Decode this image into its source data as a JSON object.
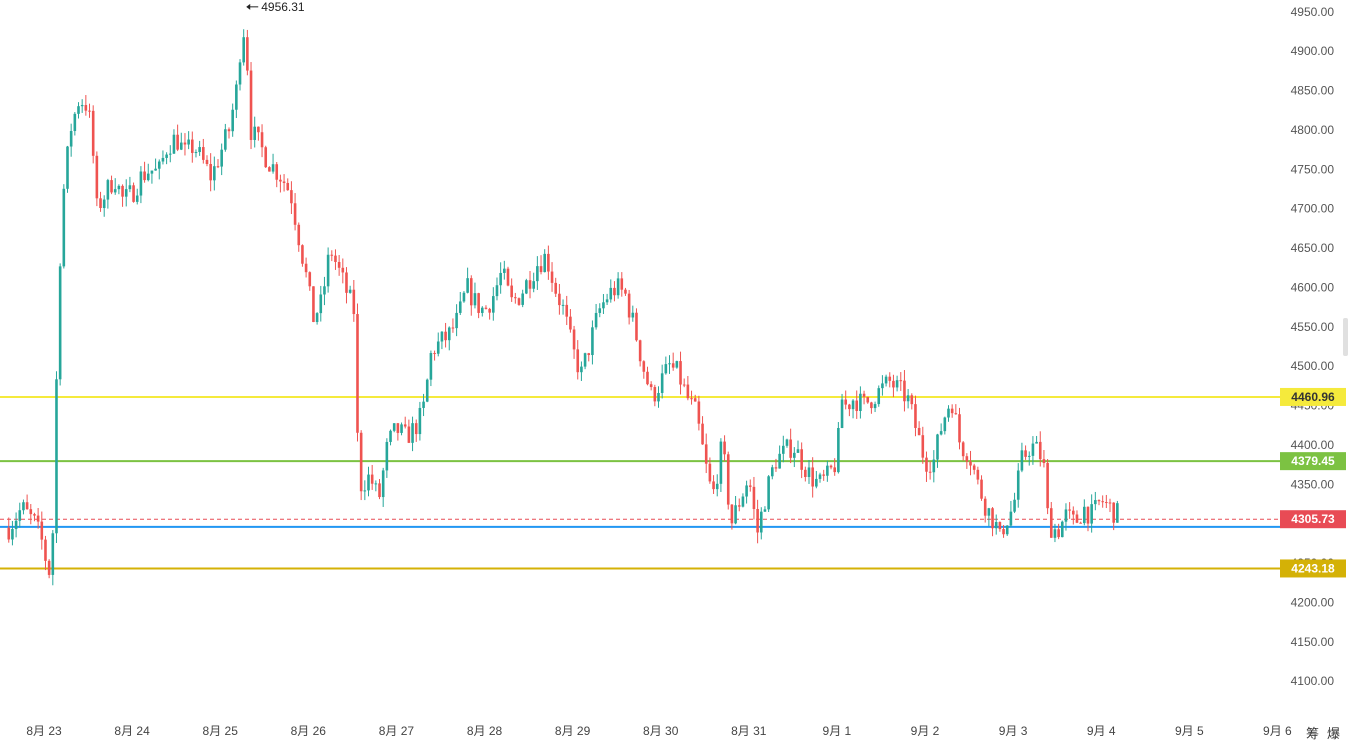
{
  "chart_data": {
    "type": "candlestick",
    "y_axis": {
      "range": [
        4066,
        4965
      ],
      "ticks": [
        4100,
        4150,
        4200,
        4250,
        4300,
        4350,
        4400,
        4450,
        4500,
        4550,
        4600,
        4650,
        4700,
        4750,
        4800,
        4850,
        4900,
        4950
      ],
      "tick_labels": [
        "4100.00",
        "4150.00",
        "4200.00",
        "4250.00",
        "4300.00",
        "4350.00",
        "4400.00",
        "4450.00",
        "4500.00",
        "4550.00",
        "4600.00",
        "4650.00",
        "4700.00",
        "4750.00",
        "4800.00",
        "4850.00",
        "4900.00",
        "4950.00"
      ],
      "position": "right"
    },
    "x_axis": {
      "labels": [
        "8月 23",
        "8月 24",
        "8月 25",
        "8月 26",
        "8月 27",
        "8月 28",
        "8月 29",
        "8月 30",
        "8月 31",
        "9月 1",
        "9月 2",
        "9月 3",
        "9月 4",
        "9月 5",
        "9月 6"
      ]
    },
    "x_range_days": [
      -0.4,
      14.3
    ],
    "colors": {
      "up": "#26a69a",
      "down": "#ef5350"
    },
    "price_path": [
      [
        -0.4,
        4295
      ],
      [
        -0.25,
        4320
      ],
      [
        -0.1,
        4300
      ],
      [
        0.0,
        4270
      ],
      [
        0.05,
        4230
      ],
      [
        0.1,
        4290
      ],
      [
        0.15,
        4520
      ],
      [
        0.2,
        4700
      ],
      [
        0.3,
        4800
      ],
      [
        0.4,
        4840
      ],
      [
        0.5,
        4830
      ],
      [
        0.55,
        4780
      ],
      [
        0.6,
        4700
      ],
      [
        0.7,
        4720
      ],
      [
        0.8,
        4740
      ],
      [
        0.9,
        4710
      ],
      [
        1.0,
        4720
      ],
      [
        1.1,
        4740
      ],
      [
        1.2,
        4750
      ],
      [
        1.3,
        4745
      ],
      [
        1.4,
        4780
      ],
      [
        1.5,
        4790
      ],
      [
        1.6,
        4770
      ],
      [
        1.7,
        4780
      ],
      [
        1.8,
        4760
      ],
      [
        1.9,
        4740
      ],
      [
        2.0,
        4770
      ],
      [
        2.1,
        4800
      ],
      [
        2.2,
        4860
      ],
      [
        2.25,
        4940
      ],
      [
        2.3,
        4900
      ],
      [
        2.35,
        4800
      ],
      [
        2.45,
        4780
      ],
      [
        2.55,
        4760
      ],
      [
        2.7,
        4740
      ],
      [
        2.8,
        4720
      ],
      [
        2.9,
        4660
      ],
      [
        3.0,
        4600
      ],
      [
        3.05,
        4560
      ],
      [
        3.15,
        4580
      ],
      [
        3.25,
        4650
      ],
      [
        3.35,
        4620
      ],
      [
        3.45,
        4590
      ],
      [
        3.52,
        4570
      ],
      [
        3.55,
        4420
      ],
      [
        3.6,
        4350
      ],
      [
        3.7,
        4360
      ],
      [
        3.8,
        4330
      ],
      [
        3.9,
        4400
      ],
      [
        4.0,
        4420
      ],
      [
        4.1,
        4410
      ],
      [
        4.2,
        4420
      ],
      [
        4.3,
        4440
      ],
      [
        4.4,
        4520
      ],
      [
        4.5,
        4530
      ],
      [
        4.6,
        4540
      ],
      [
        4.7,
        4560
      ],
      [
        4.8,
        4600
      ],
      [
        4.9,
        4580
      ],
      [
        5.0,
        4570
      ],
      [
        5.1,
        4590
      ],
      [
        5.2,
        4620
      ],
      [
        5.3,
        4580
      ],
      [
        5.4,
        4590
      ],
      [
        5.5,
        4610
      ],
      [
        5.6,
        4630
      ],
      [
        5.7,
        4640
      ],
      [
        5.8,
        4600
      ],
      [
        5.9,
        4570
      ],
      [
        6.0,
        4520
      ],
      [
        6.1,
        4490
      ],
      [
        6.2,
        4530
      ],
      [
        6.3,
        4570
      ],
      [
        6.4,
        4590
      ],
      [
        6.5,
        4600
      ],
      [
        6.6,
        4590
      ],
      [
        6.7,
        4550
      ],
      [
        6.8,
        4500
      ],
      [
        6.9,
        4460
      ],
      [
        7.0,
        4480
      ],
      [
        7.1,
        4500
      ],
      [
        7.2,
        4490
      ],
      [
        7.3,
        4460
      ],
      [
        7.4,
        4440
      ],
      [
        7.5,
        4380
      ],
      [
        7.55,
        4350
      ],
      [
        7.6,
        4340
      ],
      [
        7.7,
        4400
      ],
      [
        7.8,
        4300
      ],
      [
        7.9,
        4330
      ],
      [
        8.0,
        4360
      ],
      [
        8.05,
        4320
      ],
      [
        8.1,
        4290
      ],
      [
        8.2,
        4340
      ],
      [
        8.3,
        4380
      ],
      [
        8.4,
        4390
      ],
      [
        8.5,
        4400
      ],
      [
        8.6,
        4380
      ],
      [
        8.7,
        4360
      ],
      [
        8.8,
        4350
      ],
      [
        8.9,
        4360
      ],
      [
        9.0,
        4380
      ],
      [
        9.05,
        4460
      ],
      [
        9.1,
        4450
      ],
      [
        9.2,
        4460
      ],
      [
        9.3,
        4450
      ],
      [
        9.4,
        4460
      ],
      [
        9.5,
        4470
      ],
      [
        9.6,
        4480
      ],
      [
        9.7,
        4470
      ],
      [
        9.8,
        4460
      ],
      [
        9.9,
        4420
      ],
      [
        10.0,
        4380
      ],
      [
        10.1,
        4380
      ],
      [
        10.2,
        4430
      ],
      [
        10.3,
        4460
      ],
      [
        10.4,
        4400
      ],
      [
        10.5,
        4390
      ],
      [
        10.6,
        4350
      ],
      [
        10.7,
        4320
      ],
      [
        10.8,
        4300
      ],
      [
        10.85,
        4280
      ],
      [
        10.9,
        4300
      ],
      [
        11.0,
        4320
      ],
      [
        11.1,
        4380
      ],
      [
        11.2,
        4400
      ],
      [
        11.3,
        4390
      ],
      [
        11.35,
        4370
      ],
      [
        11.4,
        4300
      ],
      [
        11.5,
        4290
      ],
      [
        11.6,
        4310
      ],
      [
        11.7,
        4300
      ],
      [
        11.8,
        4320
      ],
      [
        11.9,
        4310
      ],
      [
        12.0,
        4330
      ],
      [
        12.1,
        4320
      ],
      [
        12.2,
        4310
      ]
    ],
    "hlines": [
      {
        "value": 4460.96,
        "label": "4460.96",
        "color": "#f5ea3c"
      },
      {
        "value": 4379.45,
        "label": "4379.45",
        "color": "#7cc242"
      },
      {
        "value": 4305.73,
        "label": "4305.73",
        "color": "#e84b55",
        "style": "dashed"
      },
      {
        "value": 4296.0,
        "label": "",
        "color": "#2196f3"
      },
      {
        "value": 4243.18,
        "label": "4243.18",
        "color": "#d4b106"
      }
    ],
    "annotation": {
      "label": "4956.31",
      "value": 4956.31,
      "x_day": 2.25
    },
    "grid": false,
    "legend": "none"
  },
  "tools": {
    "left": "筹",
    "right": "爆"
  }
}
